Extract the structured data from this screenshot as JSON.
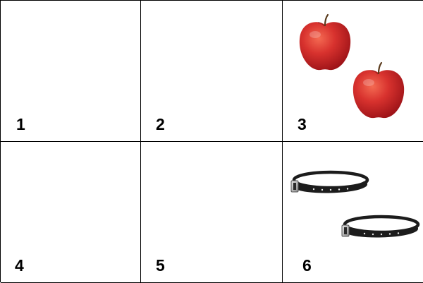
{
  "cells": [
    {
      "label": "1",
      "content": "empty"
    },
    {
      "label": "2",
      "content": "empty"
    },
    {
      "label": "3",
      "content": "apples",
      "count": 2,
      "icon": "apple-icon"
    },
    {
      "label": "4",
      "content": "empty"
    },
    {
      "label": "5",
      "content": "empty"
    },
    {
      "label": "6",
      "content": "straps",
      "count": 2,
      "icon": "strap-icon"
    }
  ],
  "colors": {
    "grid_line": "#000000",
    "background": "#ffffff",
    "apple_red": "#d8322e",
    "apple_dark": "#a8161a",
    "strap_black": "#1c1c1c",
    "buckle": "#b8b8b8"
  }
}
